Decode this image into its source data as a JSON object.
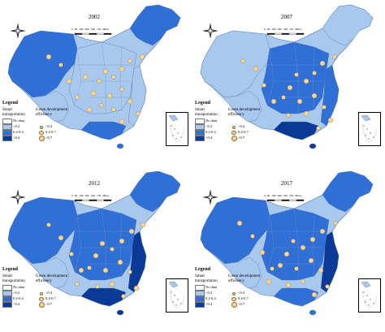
{
  "panels": [
    {
      "year": "2002",
      "palette": "dark"
    },
    {
      "year": "2007",
      "palette": "light"
    },
    {
      "year": "2012",
      "palette": "mid"
    },
    {
      "year": "2017",
      "palette": "mid2"
    }
  ],
  "legend": {
    "title": "Legend",
    "smart_heading": "Smart transportation",
    "green_heading": "Green development efficiency",
    "smart_items": [
      "No data",
      "<0.2",
      "0.2-0.4",
      ">0.4"
    ],
    "green_items": [
      "<0.4",
      "0.4-0.7",
      ">0.7"
    ]
  },
  "scale": {
    "ticks": [
      "0",
      "90",
      "180",
      "360",
      "540",
      "720"
    ],
    "unit": "Miles"
  },
  "colors": {
    "no_data": "#ffffff",
    "low": "#a9c8ee",
    "mid": "#2f6fd6",
    "high": "#0a3a96",
    "dot_fill": "#f7d79a"
  },
  "icons": [
    "compass-rose-icon",
    "south-china-sea-inset-icon"
  ]
}
